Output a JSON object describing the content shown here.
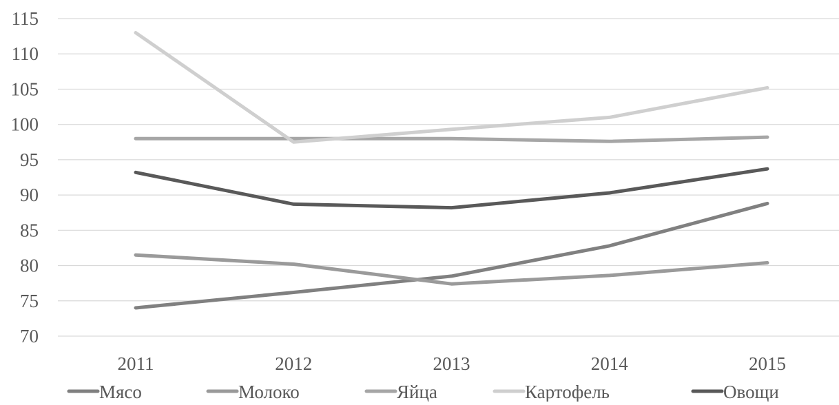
{
  "chart_data": {
    "type": "line",
    "title": "",
    "xlabel": "",
    "ylabel": "",
    "categories": [
      "2011",
      "2012",
      "2013",
      "2014",
      "2015"
    ],
    "ylim": [
      70,
      115
    ],
    "ytick_step": 5,
    "grid": true,
    "legend_position": "bottom",
    "series": [
      {
        "name": "Мясо",
        "values": [
          74.0,
          76.2,
          78.5,
          82.8,
          88.8
        ],
        "color": "#808080"
      },
      {
        "name": "Молоко",
        "values": [
          81.5,
          80.2,
          77.4,
          78.6,
          80.4
        ],
        "color": "#9a9a9a"
      },
      {
        "name": "Яйца",
        "values": [
          98.0,
          98.0,
          98.0,
          97.6,
          98.2
        ],
        "color": "#a6a6a6"
      },
      {
        "name": "Картофель",
        "values": [
          113.0,
          97.5,
          99.3,
          101.0,
          105.2
        ],
        "color": "#cfcfcf"
      },
      {
        "name": "Овощи",
        "values": [
          93.2,
          88.7,
          88.2,
          90.3,
          93.7
        ],
        "color": "#595959"
      }
    ]
  }
}
